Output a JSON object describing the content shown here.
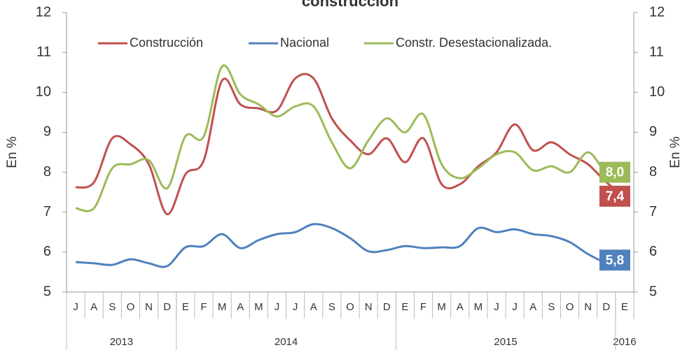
{
  "chart_data": {
    "type": "line",
    "title": "construcción",
    "ylabel": "En %",
    "y2label": "En %",
    "categories": [
      "J",
      "A",
      "S",
      "O",
      "N",
      "D",
      "E",
      "F",
      "M",
      "A",
      "M",
      "J",
      "J",
      "A",
      "S",
      "O",
      "N",
      "D",
      "E",
      "F",
      "M",
      "A",
      "M",
      "J",
      "J",
      "A",
      "S",
      "O",
      "N",
      "D",
      "E"
    ],
    "x_groups": [
      {
        "label": "2013",
        "count": 6
      },
      {
        "label": "2014",
        "count": 12
      },
      {
        "label": "2015",
        "count": 12
      },
      {
        "label": "2016",
        "count": 1
      }
    ],
    "ylim": [
      5,
      12
    ],
    "yticks": [
      5,
      6,
      7,
      8,
      9,
      10,
      11,
      12
    ],
    "y2lim": [
      5,
      12
    ],
    "y2ticks": [
      5,
      6,
      7,
      8,
      9,
      10,
      11,
      12
    ],
    "smooth": true,
    "series": [
      {
        "name": "Construcción",
        "color": "#c0504d",
        "values": [
          7.62,
          7.75,
          8.85,
          8.7,
          8.2,
          6.95,
          7.95,
          8.3,
          10.3,
          9.7,
          9.6,
          9.55,
          10.35,
          10.35,
          9.35,
          8.8,
          8.45,
          8.85,
          8.25,
          8.85,
          7.7,
          7.7,
          8.15,
          8.5,
          9.2,
          8.55,
          8.75,
          8.45,
          8.2,
          7.75,
          7.4
        ],
        "value_labels": [
          null,
          null,
          null,
          null,
          null,
          null,
          null,
          null,
          null,
          null,
          null,
          null,
          null,
          null,
          null,
          null,
          null,
          null,
          null,
          null,
          null,
          null,
          null,
          null,
          null,
          null,
          null,
          null,
          null,
          null,
          "7,4"
        ]
      },
      {
        "name": "Nacional",
        "color": "#4f81bd",
        "values": [
          5.75,
          5.72,
          5.68,
          5.82,
          5.72,
          5.65,
          6.12,
          6.15,
          6.45,
          6.1,
          6.3,
          6.45,
          6.5,
          6.7,
          6.6,
          6.35,
          6.02,
          6.05,
          6.15,
          6.1,
          6.12,
          6.15,
          6.6,
          6.5,
          6.57,
          6.45,
          6.4,
          6.25,
          5.95,
          5.75,
          5.8
        ],
        "value_labels": [
          null,
          null,
          null,
          null,
          null,
          null,
          null,
          null,
          null,
          null,
          null,
          null,
          null,
          null,
          null,
          null,
          null,
          null,
          null,
          null,
          null,
          null,
          null,
          null,
          null,
          null,
          null,
          null,
          null,
          null,
          "5,8"
        ]
      },
      {
        "name": "Constr. Desestacionalizada.",
        "color": "#9bbb59",
        "values": [
          7.1,
          7.1,
          8.1,
          8.2,
          8.3,
          7.6,
          8.9,
          8.9,
          10.65,
          9.95,
          9.7,
          9.4,
          9.65,
          9.65,
          8.75,
          8.1,
          8.8,
          9.35,
          9.0,
          9.45,
          8.2,
          7.85,
          8.1,
          8.45,
          8.5,
          8.05,
          8.15,
          8.0,
          8.5,
          8.0,
          8.0
        ],
        "value_labels": [
          null,
          null,
          null,
          null,
          null,
          null,
          null,
          null,
          null,
          null,
          null,
          null,
          null,
          null,
          null,
          null,
          null,
          null,
          null,
          null,
          null,
          null,
          null,
          null,
          null,
          null,
          null,
          null,
          null,
          null,
          "8,0"
        ]
      }
    ]
  }
}
